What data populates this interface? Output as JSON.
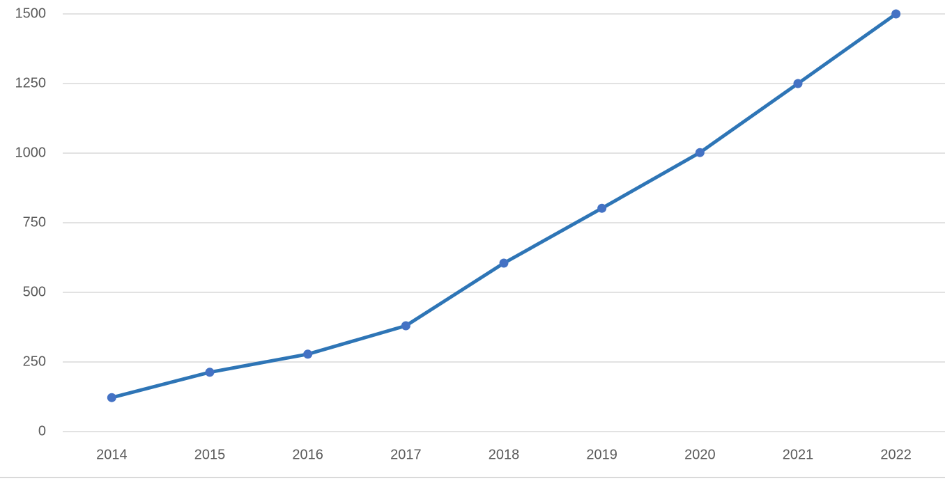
{
  "chart_data": {
    "type": "line",
    "categories": [
      "2014",
      "2015",
      "2016",
      "2017",
      "2018",
      "2019",
      "2020",
      "2021",
      "2022"
    ],
    "series": [
      {
        "color": "#2e75b6",
        "values": [
          122,
          213,
          278,
          380,
          605,
          802,
          1002,
          1250,
          1500
        ]
      }
    ],
    "ylim": [
      0,
      1500
    ],
    "yticks": [
      0,
      250,
      500,
      750,
      1000,
      1250,
      1500
    ],
    "grid": true
  }
}
